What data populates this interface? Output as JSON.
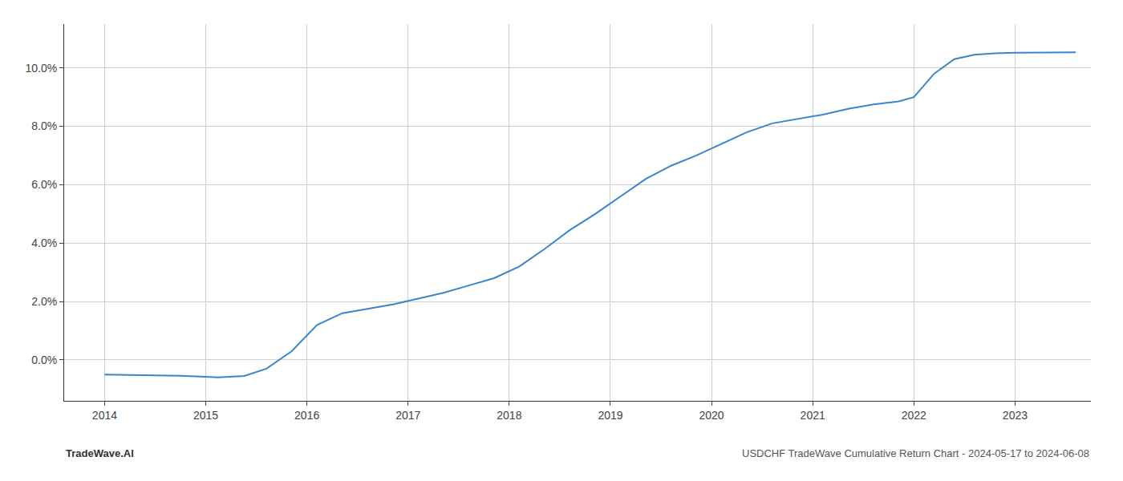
{
  "chart_data": {
    "type": "line",
    "x": [
      2014.0,
      2014.38,
      2014.75,
      2015.0,
      2015.12,
      2015.38,
      2015.6,
      2015.85,
      2016.1,
      2016.35,
      2016.6,
      2016.85,
      2017.1,
      2017.35,
      2017.6,
      2017.85,
      2018.1,
      2018.35,
      2018.6,
      2018.85,
      2019.1,
      2019.35,
      2019.6,
      2019.85,
      2020.1,
      2020.35,
      2020.6,
      2020.85,
      2021.1,
      2021.35,
      2021.6,
      2021.85,
      2022.0,
      2022.2,
      2022.4,
      2022.6,
      2022.8,
      2023.0,
      2023.3,
      2023.6
    ],
    "values": [
      -0.5,
      -0.52,
      -0.54,
      -0.58,
      -0.6,
      -0.55,
      -0.3,
      0.3,
      1.2,
      1.6,
      1.75,
      1.9,
      2.1,
      2.3,
      2.55,
      2.8,
      3.2,
      3.8,
      4.45,
      5.0,
      5.6,
      6.2,
      6.65,
      7.0,
      7.4,
      7.8,
      8.1,
      8.25,
      8.4,
      8.6,
      8.75,
      8.85,
      9.0,
      9.8,
      10.3,
      10.45,
      10.5,
      10.52,
      10.53,
      10.53
    ],
    "color": "#3a86c8",
    "xlim": [
      2013.6,
      2023.75
    ],
    "xticks": [
      2014,
      2015,
      2016,
      2017,
      2018,
      2019,
      2020,
      2021,
      2022,
      2023
    ],
    "ylim": [
      -1.4,
      11.5
    ],
    "yticks": [
      {
        "value": 0.0,
        "label": "0.0%"
      },
      {
        "value": 2.0,
        "label": "2.0%"
      },
      {
        "value": 4.0,
        "label": "4.0%"
      },
      {
        "value": 6.0,
        "label": "6.0%"
      },
      {
        "value": 8.0,
        "label": "8.0%"
      },
      {
        "value": 10.0,
        "label": "10.0%"
      }
    ],
    "grid": true,
    "annotations": [
      "TradeWave.AI",
      "USDCHF TradeWave Cumulative Return Chart - 2024-05-17 to 2024-06-08"
    ]
  }
}
